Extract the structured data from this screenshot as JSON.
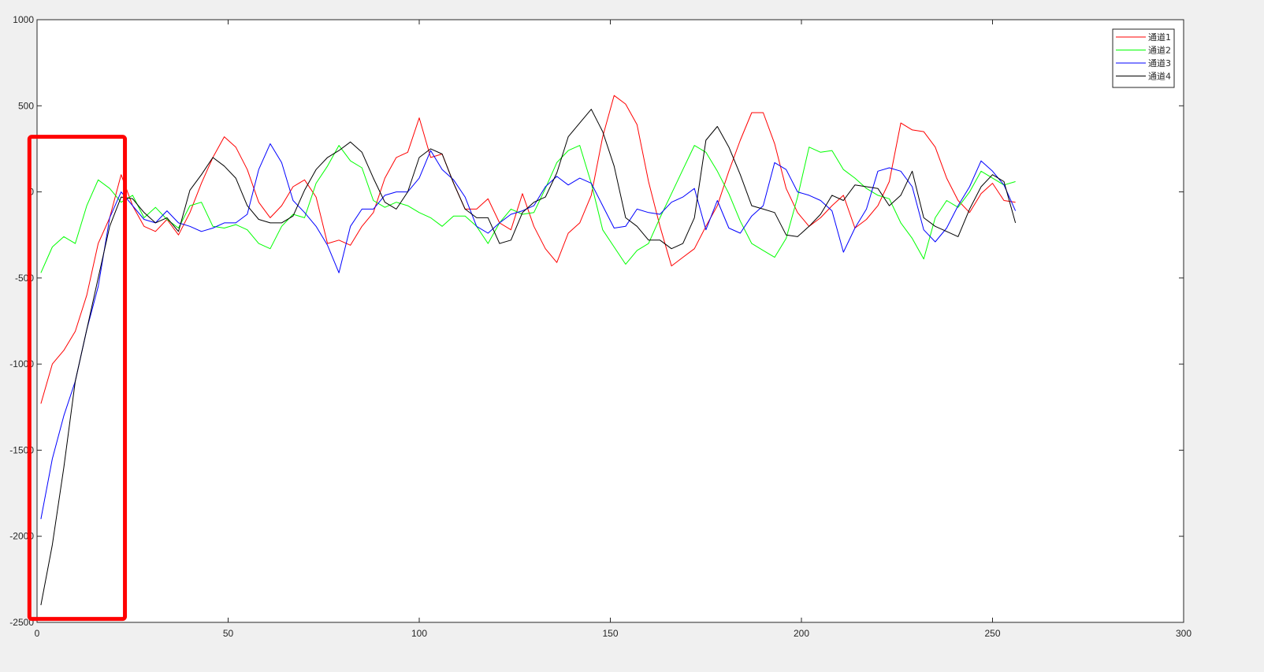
{
  "chart_data": {
    "type": "line",
    "title": "",
    "xlabel": "",
    "ylabel": "",
    "xlim": [
      0,
      300
    ],
    "ylim": [
      -2500,
      1000
    ],
    "xticks": [
      0,
      50,
      100,
      150,
      200,
      250,
      300
    ],
    "yticks": [
      -2500,
      -2000,
      -1500,
      -1000,
      -500,
      0,
      500,
      1000
    ],
    "xtick_labels": [
      "0",
      "50",
      "100",
      "150",
      "200",
      "250",
      "300"
    ],
    "ytick_labels": [
      "-2500",
      "-2000",
      "-1500",
      "-1000",
      "-500",
      "0",
      "500",
      "1000"
    ],
    "grid": false,
    "legend_position": "top-right",
    "annotation": {
      "type": "rectangle",
      "color": "#ff0000",
      "x_range": [
        -2,
        23
      ],
      "y_range": [
        -2480,
        320
      ]
    },
    "x": [
      1,
      4,
      7,
      10,
      13,
      16,
      19,
      22,
      25,
      28,
      31,
      34,
      37,
      40,
      43,
      46,
      49,
      52,
      55,
      58,
      61,
      64,
      67,
      70,
      73,
      76,
      79,
      82,
      85,
      88,
      91,
      94,
      97,
      100,
      103,
      106,
      109,
      112,
      115,
      118,
      121,
      124,
      127,
      130,
      133,
      136,
      139,
      142,
      145,
      148,
      151,
      154,
      157,
      160,
      163,
      166,
      169,
      172,
      175,
      178,
      181,
      184,
      187,
      190,
      193,
      196,
      199,
      202,
      205,
      208,
      211,
      214,
      217,
      220,
      223,
      226,
      229,
      232,
      235,
      238,
      241,
      244,
      247,
      250,
      253,
      256
    ],
    "series": [
      {
        "name": "通道1",
        "color": "#ff0000",
        "values": [
          -1230,
          -1000,
          -920,
          -810,
          -600,
          -300,
          -150,
          100,
          -80,
          -200,
          -230,
          -160,
          -250,
          -120,
          50,
          200,
          320,
          260,
          130,
          -60,
          -150,
          -80,
          30,
          70,
          -30,
          -300,
          -280,
          -310,
          -200,
          -120,
          80,
          200,
          230,
          430,
          200,
          220,
          50,
          -100,
          -100,
          -40,
          -180,
          -220,
          -10,
          -200,
          -330,
          -410,
          -240,
          -180,
          -20,
          320,
          560,
          510,
          390,
          60,
          -200,
          -430,
          -380,
          -330,
          -200,
          -80,
          120,
          300,
          460,
          460,
          280,
          20,
          -120,
          -200,
          -150,
          -80,
          -20,
          -210,
          -160,
          -80,
          60,
          400,
          360,
          350,
          260,
          80,
          -50,
          -120,
          -10,
          50,
          -50,
          -60
        ]
      },
      {
        "name": "通道2",
        "color": "#00ff00",
        "values": [
          -470,
          -320,
          -260,
          -300,
          -80,
          70,
          20,
          -60,
          -20,
          -150,
          -90,
          -160,
          -210,
          -80,
          -60,
          -200,
          -210,
          -190,
          -220,
          -300,
          -330,
          -200,
          -130,
          -150,
          50,
          150,
          270,
          180,
          140,
          -50,
          -90,
          -60,
          -80,
          -120,
          -150,
          -200,
          -140,
          -140,
          -200,
          -300,
          -180,
          -100,
          -130,
          -120,
          20,
          170,
          240,
          270,
          50,
          -220,
          -320,
          -420,
          -340,
          -300,
          -150,
          -10,
          130,
          270,
          230,
          120,
          -10,
          -170,
          -300,
          -340,
          -380,
          -270,
          -30,
          260,
          230,
          240,
          130,
          80,
          20,
          -20,
          -40,
          -180,
          -270,
          -390,
          -150,
          -50,
          -90,
          0,
          120,
          80,
          40,
          60
        ]
      },
      {
        "name": "通道3",
        "color": "#0000ff",
        "values": [
          -1900,
          -1550,
          -1300,
          -1100,
          -800,
          -550,
          -150,
          0,
          -80,
          -160,
          -180,
          -110,
          -180,
          -200,
          -230,
          -210,
          -180,
          -180,
          -130,
          130,
          280,
          170,
          -50,
          -120,
          -200,
          -310,
          -470,
          -200,
          -100,
          -100,
          -20,
          0,
          0,
          80,
          240,
          130,
          70,
          -30,
          -200,
          -240,
          -180,
          -130,
          -110,
          -80,
          30,
          90,
          40,
          80,
          50,
          -80,
          -210,
          -200,
          -100,
          -120,
          -130,
          -60,
          -30,
          20,
          -220,
          -50,
          -210,
          -240,
          -140,
          -80,
          170,
          130,
          0,
          -20,
          -50,
          -110,
          -350,
          -210,
          -100,
          120,
          140,
          120,
          30,
          -220,
          -290,
          -210,
          -80,
          30,
          180,
          120,
          40,
          -110
        ]
      },
      {
        "name": "通道4",
        "color": "#000000",
        "values": [
          -2400,
          -2050,
          -1600,
          -1100,
          -800,
          -500,
          -200,
          -30,
          -40,
          -120,
          -180,
          -150,
          -230,
          10,
          100,
          200,
          150,
          80,
          -80,
          -160,
          -180,
          -180,
          -140,
          10,
          130,
          200,
          240,
          290,
          230,
          80,
          -60,
          -100,
          0,
          200,
          250,
          220,
          50,
          -100,
          -150,
          -150,
          -300,
          -280,
          -120,
          -60,
          -30,
          110,
          320,
          400,
          480,
          350,
          150,
          -150,
          -200,
          -280,
          -280,
          -330,
          -300,
          -150,
          300,
          380,
          260,
          100,
          -80,
          -100,
          -120,
          -250,
          -260,
          -200,
          -130,
          -20,
          -50,
          40,
          30,
          20,
          -80,
          -20,
          120,
          -150,
          -200,
          -230,
          -260,
          -100,
          30,
          100,
          60,
          -180
        ]
      }
    ]
  }
}
